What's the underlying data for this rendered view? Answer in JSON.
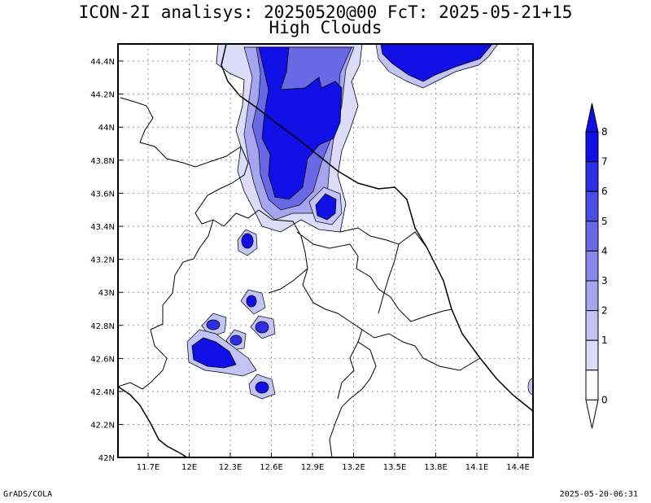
{
  "header": {
    "title_line1": "ICON-2I analisys: 20250520@00 FcT: 2025-05-21+15",
    "title_line2": "High Clouds"
  },
  "map": {
    "lon_ticks": [
      "11.7E",
      "12E",
      "12.3E",
      "12.6E",
      "12.9E",
      "13.2E",
      "13.5E",
      "13.8E",
      "14.1E",
      "14.4E"
    ],
    "lat_ticks": [
      "44.4N",
      "44.2N",
      "44N",
      "43.8N",
      "43.6N",
      "43.4N",
      "43.2N",
      "43N",
      "42.8N",
      "42.6N",
      "42.4N",
      "42.2N",
      "42N"
    ],
    "grid": "dotted",
    "field": "High Clouds"
  },
  "colorbar": {
    "labels": [
      "0",
      "1",
      "2",
      "3",
      "4",
      "5",
      "6",
      "7",
      "8"
    ],
    "colors": [
      "#ffffff",
      "#dcdcf8",
      "#c3c3f5",
      "#a5a5f0",
      "#8787eb",
      "#6969e6",
      "#4b4be6",
      "#2d2de6",
      "#0f0fe6"
    ]
  },
  "footer": {
    "left": "GrADS/COLA",
    "right": "2025-05-20-06:31"
  }
}
